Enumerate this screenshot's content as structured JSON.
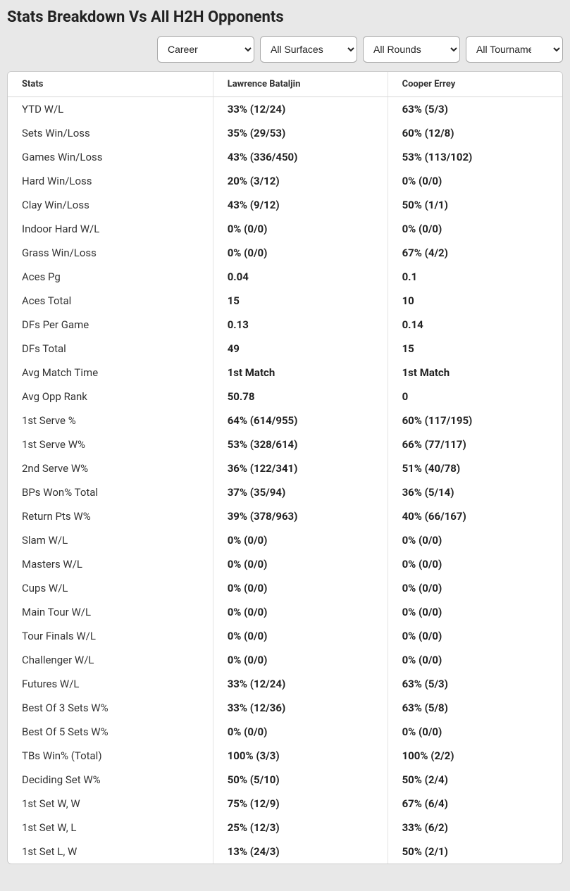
{
  "title": "Stats Breakdown Vs All H2H Opponents",
  "filters": {
    "period": "Career",
    "surface": "All Surfaces",
    "round": "All Rounds",
    "tournament": "All Tournaments"
  },
  "columns": {
    "stats": "Stats",
    "player1": "Lawrence Bataljin",
    "player2": "Cooper Errey"
  },
  "rows": [
    {
      "label": "YTD W/L",
      "p1": "33% (12/24)",
      "p2": "63% (5/3)"
    },
    {
      "label": "Sets Win/Loss",
      "p1": "35% (29/53)",
      "p2": "60% (12/8)"
    },
    {
      "label": "Games Win/Loss",
      "p1": "43% (336/450)",
      "p2": "53% (113/102)"
    },
    {
      "label": "Hard Win/Loss",
      "p1": "20% (3/12)",
      "p2": "0% (0/0)"
    },
    {
      "label": "Clay Win/Loss",
      "p1": "43% (9/12)",
      "p2": "50% (1/1)"
    },
    {
      "label": "Indoor Hard W/L",
      "p1": "0% (0/0)",
      "p2": "0% (0/0)"
    },
    {
      "label": "Grass Win/Loss",
      "p1": "0% (0/0)",
      "p2": "67% (4/2)"
    },
    {
      "label": "Aces Pg",
      "p1": "0.04",
      "p2": "0.1"
    },
    {
      "label": "Aces Total",
      "p1": "15",
      "p2": "10"
    },
    {
      "label": "DFs Per Game",
      "p1": "0.13",
      "p2": "0.14"
    },
    {
      "label": "DFs Total",
      "p1": "49",
      "p2": "15"
    },
    {
      "label": "Avg Match Time",
      "p1": "1st Match",
      "p2": "1st Match"
    },
    {
      "label": "Avg Opp Rank",
      "p1": "50.78",
      "p2": "0"
    },
    {
      "label": "1st Serve %",
      "p1": "64% (614/955)",
      "p2": "60% (117/195)"
    },
    {
      "label": "1st Serve W%",
      "p1": "53% (328/614)",
      "p2": "66% (77/117)"
    },
    {
      "label": "2nd Serve W%",
      "p1": "36% (122/341)",
      "p2": "51% (40/78)"
    },
    {
      "label": "BPs Won% Total",
      "p1": "37% (35/94)",
      "p2": "36% (5/14)"
    },
    {
      "label": "Return Pts W%",
      "p1": "39% (378/963)",
      "p2": "40% (66/167)"
    },
    {
      "label": "Slam W/L",
      "p1": "0% (0/0)",
      "p2": "0% (0/0)"
    },
    {
      "label": "Masters W/L",
      "p1": "0% (0/0)",
      "p2": "0% (0/0)"
    },
    {
      "label": "Cups W/L",
      "p1": "0% (0/0)",
      "p2": "0% (0/0)"
    },
    {
      "label": "Main Tour W/L",
      "p1": "0% (0/0)",
      "p2": "0% (0/0)"
    },
    {
      "label": "Tour Finals W/L",
      "p1": "0% (0/0)",
      "p2": "0% (0/0)"
    },
    {
      "label": "Challenger W/L",
      "p1": "0% (0/0)",
      "p2": "0% (0/0)"
    },
    {
      "label": "Futures W/L",
      "p1": "33% (12/24)",
      "p2": "63% (5/3)"
    },
    {
      "label": "Best Of 3 Sets W%",
      "p1": "33% (12/36)",
      "p2": "63% (5/8)"
    },
    {
      "label": "Best Of 5 Sets W%",
      "p1": "0% (0/0)",
      "p2": "0% (0/0)"
    },
    {
      "label": "TBs Win% (Total)",
      "p1": "100% (3/3)",
      "p2": "100% (2/2)"
    },
    {
      "label": "Deciding Set W%",
      "p1": "50% (5/10)",
      "p2": "50% (2/4)"
    },
    {
      "label": "1st Set W, W",
      "p1": "75% (12/9)",
      "p2": "67% (6/4)"
    },
    {
      "label": "1st Set W, L",
      "p1": "25% (12/3)",
      "p2": "33% (6/2)"
    },
    {
      "label": "1st Set L, W",
      "p1": "13% (24/3)",
      "p2": "50% (2/1)"
    }
  ]
}
